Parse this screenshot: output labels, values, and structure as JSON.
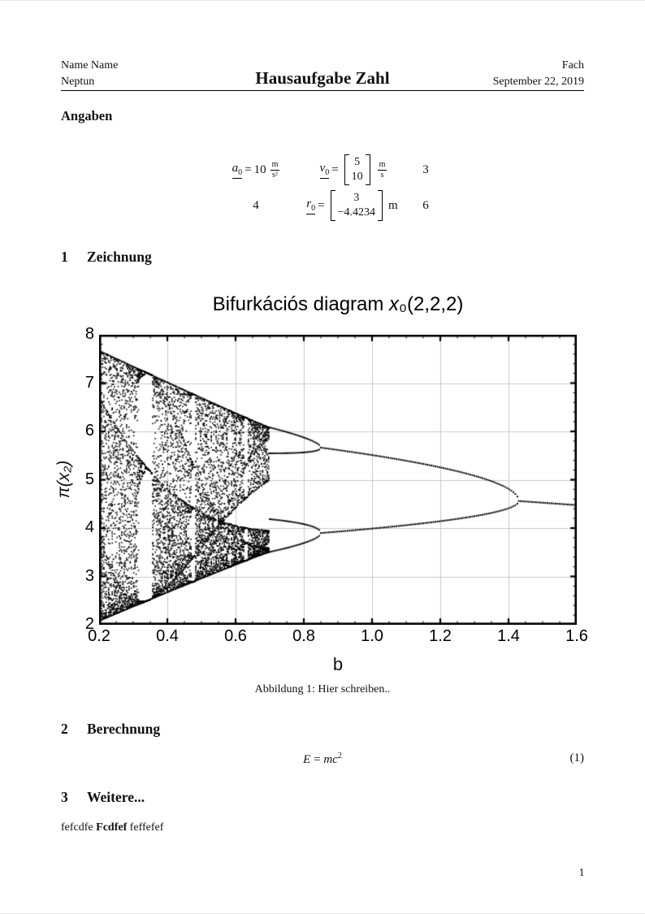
{
  "header": {
    "left_line1": "Name Name",
    "left_line2": "Neptun",
    "title": "Hausaufgabe Zahl",
    "right_line1": "Fach",
    "right_line2": "September 22, 2019"
  },
  "headings": {
    "angaben": "Angaben",
    "s1_num": "1",
    "s1_title": "Zeichnung",
    "s2_num": "2",
    "s2_title": "Berechnung",
    "s3_num": "3",
    "s3_title": "Weitere..."
  },
  "given_equations": {
    "row1": {
      "a_var": "a",
      "a_sub": "0",
      "a_rel": "=",
      "a_value": "10",
      "a_unit_num": "m",
      "a_unit_den": "s²",
      "v_var": "v",
      "v_sub": "0",
      "v_rel": "=",
      "v_vector": [
        "5",
        "10"
      ],
      "v_unit_num": "m",
      "v_unit_den": "s",
      "tag": "3"
    },
    "row2": {
      "lead": "4",
      "r_var": "r",
      "r_sub": "0",
      "r_rel": "=",
      "r_vector": [
        "3",
        "−4.4234"
      ],
      "r_unit": "m",
      "tag": "6"
    }
  },
  "figure": {
    "caption": "Abbildung 1: Hier schreiben.."
  },
  "equation2": {
    "lhs": "E",
    "rel": "=",
    "rhs": "mc",
    "rhs_sup": "2",
    "tag": "(1)"
  },
  "paragraph": {
    "part1": "fefcdfe",
    "part2": "Fcdfef",
    "part3": "feffefef"
  },
  "page": {
    "number": "1"
  },
  "chart_data": {
    "type": "scatter",
    "subtype": "bifurcation-diagram",
    "title_text": "Bifurkációs diagram ",
    "title_var": "x",
    "title_suffix": "₀(2,2,2)",
    "xlabel": "b",
    "ylabel": "π(x₂)",
    "xlim": [
      0.2,
      1.6
    ],
    "ylim": [
      2,
      8
    ],
    "x_ticks": [
      0.2,
      0.4,
      0.6,
      0.8,
      1.0,
      1.2,
      1.4,
      1.6
    ],
    "x_tick_labels": [
      "0.2",
      "0.4",
      "0.6",
      "0.8",
      "1.0",
      "1.2",
      "1.4",
      "1.6"
    ],
    "y_ticks": [
      2,
      3,
      4,
      5,
      6,
      7,
      8
    ],
    "y_tick_labels": [
      "2",
      "3",
      "4",
      "5",
      "6",
      "7",
      "8"
    ],
    "x_minor_step": 0.05,
    "y_minor_step": 0.2,
    "grid": true,
    "frame": true,
    "point_color": "#000000",
    "grid_color": "#c9c9c9",
    "point_size_skeleton": 2.0,
    "point_size_chaos": 1.6,
    "skeleton_step": 0.006,
    "structure": {
      "fixed_branch": {
        "b_range": [
          1.43,
          1.6
        ],
        "pi_start": 4.56,
        "pi_end": 4.47,
        "slope": -0.5
      },
      "period2": {
        "b_range": [
          0.85,
          1.43
        ],
        "fork": {
          "b": 1.43,
          "pi": 4.56
        },
        "upper_coef": 1.45,
        "lower_coef": 0.87,
        "upper_at_085": 5.66,
        "lower_at_085": 3.9
      },
      "period4": {
        "b_range": [
          0.7,
          0.85
        ],
        "arm_offsets_upper": [
          0.73,
          -0.65
        ],
        "arm_offsets_lower": [
          0.95,
          -0.8
        ]
      },
      "chaos": {
        "b_range": [
          0.2,
          0.7
        ],
        "top_envelope_at_02": 7.63,
        "bottom_envelope_at_02": 2.03,
        "envelope_top_extra": 2.1,
        "envelope_bottom_extra": 2.0,
        "r_map": [
          3.58,
          0.72
        ],
        "column_step": 0.0035,
        "samples_per_column": 60,
        "warmup_iterations": 160
      }
    }
  }
}
